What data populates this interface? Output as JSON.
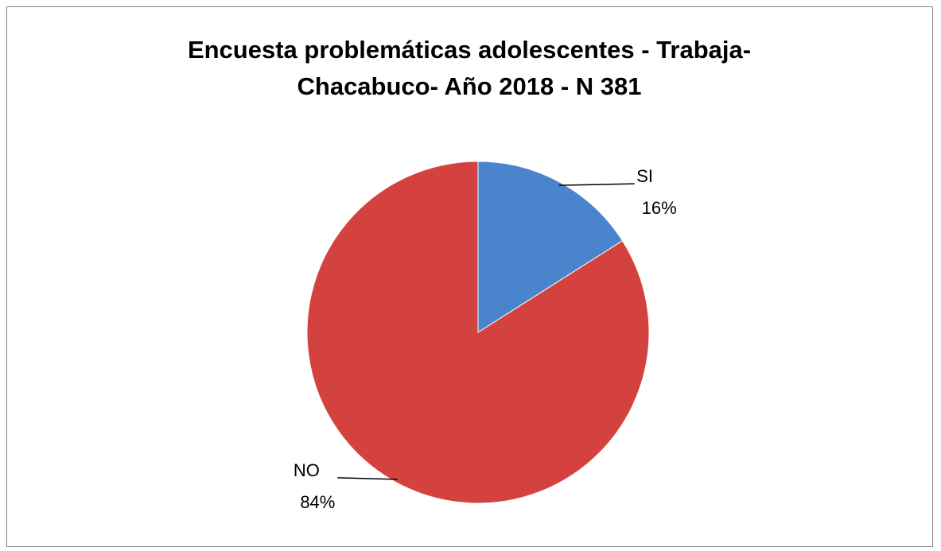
{
  "chart_data": {
    "type": "pie",
    "title": "Encuesta problemáticas adolescentes - Trabaja-Chacabuco- Año 2018 - N 381",
    "categories": [
      "SI",
      "NO"
    ],
    "values": [
      16,
      84
    ],
    "value_labels": [
      "16%",
      "84%"
    ],
    "colors": [
      "#4a84cc",
      "#d4423f"
    ]
  }
}
